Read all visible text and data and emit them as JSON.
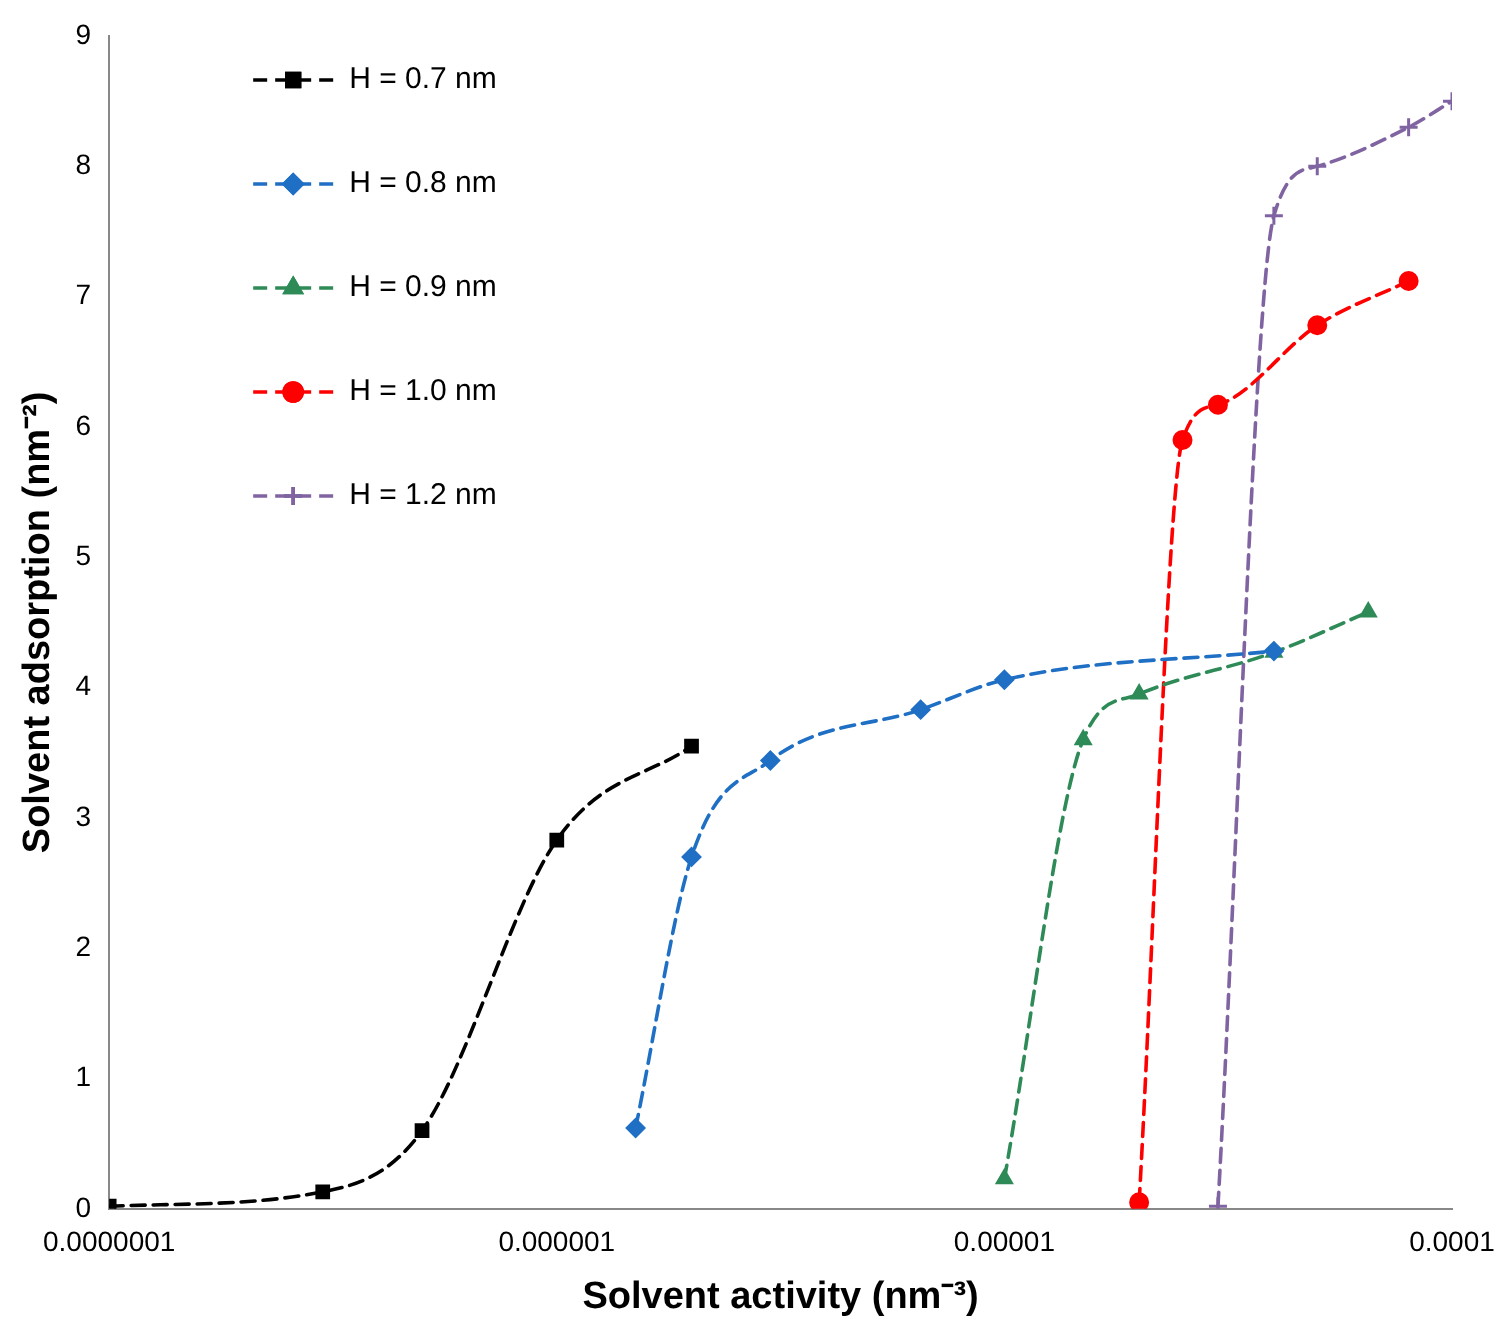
{
  "chart_data": {
    "type": "line",
    "xlabel": "Solvent activity (nm⁻³)",
    "ylabel": "Solvent adsorption (nm⁻²)",
    "log": "x",
    "xlim": [
      1e-07,
      0.0001
    ],
    "xticks": [
      {
        "value": 1e-07,
        "label": "0.0000001"
      },
      {
        "value": 1e-06,
        "label": "0.000001"
      },
      {
        "value": 1e-05,
        "label": "0.00001"
      },
      {
        "value": 0.0001,
        "label": "0.0001"
      }
    ],
    "ylim": [
      0,
      9
    ],
    "yticks": [
      0,
      1,
      2,
      3,
      4,
      5,
      6,
      7,
      8,
      9
    ],
    "grid": false,
    "legend": "top left",
    "line_style": "dashed",
    "series": [
      {
        "name": "H = 0.7 nm",
        "color": "#000000",
        "marker": "square",
        "x": [
          1e-07,
          3e-07,
          5e-07,
          1e-06,
          2e-06
        ],
        "values": [
          0.02,
          0.13,
          0.6,
          2.83,
          3.55
        ]
      },
      {
        "name": "H = 0.8 nm",
        "color": "#1f6fc5",
        "marker": "diamond",
        "x": [
          1.5e-06,
          2e-06,
          3e-06,
          6.5e-06,
          1e-05,
          4e-05
        ],
        "values": [
          0.62,
          2.7,
          3.44,
          3.83,
          4.06,
          4.28
        ]
      },
      {
        "name": "H = 0.9 nm",
        "color": "#2e8b57",
        "marker": "triangle",
        "x": [
          1e-05,
          1.5e-05,
          2e-05,
          4e-05,
          6.5e-05
        ],
        "values": [
          0.23,
          3.6,
          3.95,
          4.27,
          4.58
        ]
      },
      {
        "name": "H = 1.0 nm",
        "color": "#ff0000",
        "marker": "circle",
        "x": [
          2e-05,
          2.5e-05,
          3e-05,
          5e-05,
          8e-05
        ],
        "values": [
          0.05,
          5.9,
          6.17,
          6.78,
          7.12
        ]
      },
      {
        "name": "H = 1.2 nm",
        "color": "#8064a2",
        "marker": "cross",
        "x": [
          3e-05,
          4e-05,
          5e-05,
          8e-05,
          0.0001
        ],
        "values": [
          0.02,
          7.62,
          8.0,
          8.3,
          8.5
        ]
      }
    ]
  }
}
